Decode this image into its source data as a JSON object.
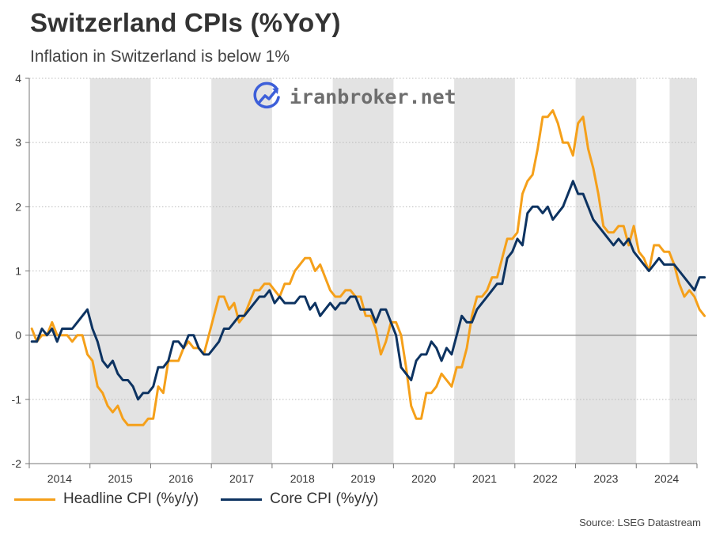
{
  "title": "Switzerland CPIs (%YoY)",
  "subtitle": "Inflation in Switzerland is below 1%",
  "watermark": {
    "text": "iranbroker.net",
    "icon": "chart-growth-icon"
  },
  "source": "Source: LSEG Datastream",
  "colors": {
    "headline": "#f5a01a",
    "core": "#0d3361",
    "band": "#e3e3e3",
    "grid": "#bbbbbb",
    "zero": "#888888"
  },
  "chart_data": {
    "type": "line",
    "title": "Switzerland CPIs (%YoY)",
    "xlabel": "",
    "ylabel": "",
    "x_range": [
      "2014-01",
      "2024-12"
    ],
    "ylim": [
      -2,
      4
    ],
    "yticks": [
      "-2",
      "-1",
      "0",
      "1",
      "2",
      "3",
      "4"
    ],
    "xticks": [
      "2014",
      "2015",
      "2016",
      "2017",
      "2018",
      "2019",
      "2020",
      "2021",
      "2022",
      "2023",
      "2024"
    ],
    "shaded_years": [
      "2015",
      "2017",
      "2019",
      "2021",
      "2023"
    ],
    "grid": true,
    "legend": "bottom-left",
    "series": [
      {
        "name": "Headline CPI (%y/y)",
        "color": "#f5a01a",
        "start": "2014-01",
        "values": [
          0.1,
          -0.1,
          0.0,
          0.0,
          0.2,
          0.0,
          0.0,
          0.0,
          -0.1,
          0.0,
          0.0,
          -0.3,
          -0.4,
          -0.8,
          -0.9,
          -1.1,
          -1.2,
          -1.1,
          -1.3,
          -1.4,
          -1.4,
          -1.4,
          -1.4,
          -1.3,
          -1.3,
          -0.8,
          -0.9,
          -0.4,
          -0.4,
          -0.4,
          -0.2,
          -0.1,
          -0.2,
          -0.2,
          -0.3,
          0.0,
          0.3,
          0.6,
          0.6,
          0.4,
          0.5,
          0.2,
          0.3,
          0.5,
          0.7,
          0.7,
          0.8,
          0.8,
          0.7,
          0.6,
          0.8,
          0.8,
          1.0,
          1.1,
          1.2,
          1.2,
          1.0,
          1.1,
          0.9,
          0.7,
          0.6,
          0.6,
          0.7,
          0.7,
          0.6,
          0.6,
          0.3,
          0.3,
          0.1,
          -0.3,
          -0.1,
          0.2,
          0.2,
          0.0,
          -0.5,
          -1.1,
          -1.3,
          -1.3,
          -0.9,
          -0.9,
          -0.8,
          -0.6,
          -0.7,
          -0.8,
          -0.5,
          -0.5,
          -0.2,
          0.3,
          0.6,
          0.6,
          0.7,
          0.9,
          0.9,
          1.2,
          1.5,
          1.5,
          1.6,
          2.2,
          2.4,
          2.5,
          2.9,
          3.4,
          3.4,
          3.5,
          3.3,
          3.0,
          3.0,
          2.8,
          3.3,
          3.4,
          2.9,
          2.6,
          2.2,
          1.7,
          1.6,
          1.6,
          1.7,
          1.7,
          1.4,
          1.7,
          1.3,
          1.2,
          1.0,
          1.4,
          1.4,
          1.3,
          1.3,
          1.1,
          0.8,
          0.6,
          0.7,
          0.6,
          0.4,
          0.3
        ]
      },
      {
        "name": "Core CPI (%y/y)",
        "color": "#0d3361",
        "start": "2014-01",
        "values": [
          -0.1,
          -0.1,
          0.1,
          0.0,
          0.1,
          -0.1,
          0.1,
          0.1,
          0.1,
          0.2,
          0.3,
          0.4,
          0.1,
          -0.1,
          -0.4,
          -0.5,
          -0.4,
          -0.6,
          -0.7,
          -0.7,
          -0.8,
          -1.0,
          -0.9,
          -0.9,
          -0.8,
          -0.5,
          -0.5,
          -0.4,
          -0.1,
          -0.1,
          -0.2,
          0.0,
          0.0,
          -0.2,
          -0.3,
          -0.3,
          -0.2,
          -0.1,
          0.1,
          0.1,
          0.2,
          0.3,
          0.3,
          0.4,
          0.5,
          0.6,
          0.6,
          0.7,
          0.5,
          0.6,
          0.5,
          0.5,
          0.5,
          0.6,
          0.6,
          0.4,
          0.5,
          0.3,
          0.4,
          0.5,
          0.4,
          0.5,
          0.5,
          0.6,
          0.6,
          0.4,
          0.4,
          0.4,
          0.2,
          0.4,
          0.4,
          0.2,
          0.0,
          -0.5,
          -0.6,
          -0.7,
          -0.4,
          -0.3,
          -0.3,
          -0.1,
          -0.2,
          -0.4,
          -0.2,
          -0.3,
          0.0,
          0.3,
          0.2,
          0.2,
          0.4,
          0.5,
          0.6,
          0.7,
          0.8,
          0.8,
          1.2,
          1.3,
          1.5,
          1.4,
          1.9,
          2.0,
          2.0,
          1.9,
          2.0,
          1.8,
          1.9,
          2.0,
          2.2,
          2.4,
          2.2,
          2.2,
          2.0,
          1.8,
          1.7,
          1.6,
          1.5,
          1.4,
          1.5,
          1.4,
          1.5,
          1.3,
          1.2,
          1.1,
          1.0,
          1.1,
          1.2,
          1.1,
          1.1,
          1.1,
          1.0,
          0.9,
          0.8,
          0.7,
          0.9,
          0.9
        ]
      }
    ]
  }
}
